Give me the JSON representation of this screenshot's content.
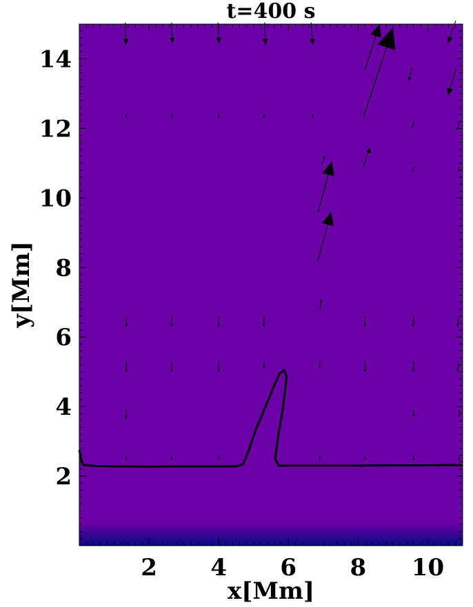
{
  "chart_data": {
    "type": "heatmap",
    "title": "t=400 s",
    "xlabel": "x[Mm]",
    "ylabel": "y[Mm]",
    "xlim": [
      0,
      11
    ],
    "ylim": [
      0,
      15
    ],
    "xticks": [
      2,
      4,
      6,
      8,
      10
    ],
    "yticks": [
      2,
      4,
      6,
      8,
      10,
      12,
      14
    ],
    "colors": {
      "field": "#6a00a6",
      "field_bottom": "#0a0a80",
      "contour": "#000000",
      "arrows": "#000000"
    },
    "contour": [
      [
        0.0,
        2.75
      ],
      [
        0.05,
        2.5
      ],
      [
        0.12,
        2.32
      ],
      [
        0.5,
        2.29
      ],
      [
        1.0,
        2.28
      ],
      [
        1.5,
        2.28
      ],
      [
        2.0,
        2.27
      ],
      [
        2.5,
        2.28
      ],
      [
        3.0,
        2.28
      ],
      [
        3.5,
        2.28
      ],
      [
        4.0,
        2.28
      ],
      [
        4.5,
        2.28
      ],
      [
        4.7,
        2.35
      ],
      [
        4.85,
        2.7
      ],
      [
        5.05,
        3.3
      ],
      [
        5.3,
        3.9
      ],
      [
        5.55,
        4.5
      ],
      [
        5.75,
        4.95
      ],
      [
        5.88,
        5.05
      ],
      [
        5.95,
        4.85
      ],
      [
        5.85,
        4.0
      ],
      [
        5.7,
        3.1
      ],
      [
        5.62,
        2.5
      ],
      [
        5.72,
        2.3
      ],
      [
        6.2,
        2.3
      ],
      [
        7.0,
        2.3
      ],
      [
        8.0,
        2.3
      ],
      [
        9.0,
        2.31
      ],
      [
        10.0,
        2.31
      ],
      [
        10.5,
        2.32
      ],
      [
        11.0,
        2.31
      ]
    ],
    "vectors": [
      {
        "x": 1.32,
        "y": 15.05,
        "u": 0.02,
        "v": -0.65
      },
      {
        "x": 2.65,
        "y": 15.05,
        "u": 0.02,
        "v": -0.6
      },
      {
        "x": 3.98,
        "y": 15.05,
        "u": 0.03,
        "v": -0.6
      },
      {
        "x": 5.32,
        "y": 15.05,
        "u": 0.02,
        "v": -0.65
      },
      {
        "x": 6.65,
        "y": 15.05,
        "u": 0.05,
        "v": -0.65
      },
      {
        "x": 8.2,
        "y": 13.7,
        "u": 0.42,
        "v": 1.3
      },
      {
        "x": 8.15,
        "y": 12.3,
        "u": 0.85,
        "v": 2.6
      },
      {
        "x": 10.8,
        "y": 15.1,
        "u": -0.22,
        "v": -0.65
      },
      {
        "x": 9.55,
        "y": 13.75,
        "u": -0.1,
        "v": -0.38
      },
      {
        "x": 10.8,
        "y": 13.7,
        "u": -0.22,
        "v": -0.75
      },
      {
        "x": 1.35,
        "y": 12.4,
        "u": 0.0,
        "v": -0.1
      },
      {
        "x": 2.65,
        "y": 12.4,
        "u": 0.0,
        "v": -0.1
      },
      {
        "x": 4.0,
        "y": 12.4,
        "u": 0.0,
        "v": -0.1
      },
      {
        "x": 5.3,
        "y": 12.4,
        "u": 0.0,
        "v": -0.1
      },
      {
        "x": 6.7,
        "y": 12.4,
        "u": 0.0,
        "v": -0.1
      },
      {
        "x": 9.6,
        "y": 12.2,
        "u": -0.05,
        "v": -0.2
      },
      {
        "x": 10.9,
        "y": 12.2,
        "u": -0.05,
        "v": -0.25
      },
      {
        "x": 8.15,
        "y": 10.9,
        "u": 0.2,
        "v": 0.55
      },
      {
        "x": 6.85,
        "y": 9.6,
        "u": 0.4,
        "v": 1.45
      },
      {
        "x": 6.95,
        "y": 10.95,
        "u": 0.1,
        "v": 0.25
      },
      {
        "x": 6.85,
        "y": 8.2,
        "u": 0.38,
        "v": 1.4
      },
      {
        "x": 6.9,
        "y": 6.8,
        "u": 0.05,
        "v": 0.3
      },
      {
        "x": 9.6,
        "y": 10.9,
        "u": -0.03,
        "v": -0.15
      },
      {
        "x": 10.9,
        "y": 10.9,
        "u": -0.03,
        "v": -0.15
      },
      {
        "x": 1.35,
        "y": 6.6,
        "u": 0.0,
        "v": -0.3
      },
      {
        "x": 2.65,
        "y": 6.6,
        "u": 0.0,
        "v": -0.3
      },
      {
        "x": 4.0,
        "y": 6.6,
        "u": 0.0,
        "v": -0.3
      },
      {
        "x": 5.3,
        "y": 6.6,
        "u": 0.0,
        "v": -0.3
      },
      {
        "x": 8.2,
        "y": 6.6,
        "u": 0.0,
        "v": -0.3
      },
      {
        "x": 9.6,
        "y": 6.6,
        "u": -0.03,
        "v": -0.3
      },
      {
        "x": 10.9,
        "y": 6.6,
        "u": -0.05,
        "v": -0.3
      },
      {
        "x": 1.35,
        "y": 5.3,
        "u": 0.0,
        "v": -0.3
      },
      {
        "x": 2.65,
        "y": 5.3,
        "u": 0.0,
        "v": -0.3
      },
      {
        "x": 4.0,
        "y": 5.3,
        "u": 0.0,
        "v": -0.3
      },
      {
        "x": 5.3,
        "y": 5.3,
        "u": 0.0,
        "v": -0.2
      },
      {
        "x": 6.9,
        "y": 5.3,
        "u": 0.0,
        "v": -0.2
      },
      {
        "x": 8.2,
        "y": 5.3,
        "u": 0.0,
        "v": -0.3
      },
      {
        "x": 9.6,
        "y": 5.3,
        "u": -0.03,
        "v": -0.3
      },
      {
        "x": 10.9,
        "y": 5.3,
        "u": -0.05,
        "v": -0.3
      },
      {
        "x": 1.35,
        "y": 3.9,
        "u": 0.0,
        "v": -0.25
      },
      {
        "x": 9.6,
        "y": 3.9,
        "u": 0.0,
        "v": -0.2
      },
      {
        "x": 10.9,
        "y": 3.9,
        "u": 0.0,
        "v": -0.2
      },
      {
        "x": 1.35,
        "y": 2.6,
        "u": 0.0,
        "v": -0.15
      },
      {
        "x": 2.65,
        "y": 2.6,
        "u": 0.0,
        "v": -0.15
      },
      {
        "x": 4.0,
        "y": 2.6,
        "u": 0.0,
        "v": -0.15
      },
      {
        "x": 6.9,
        "y": 2.6,
        "u": 0.0,
        "v": -0.15
      },
      {
        "x": 8.2,
        "y": 2.6,
        "u": 0.0,
        "v": -0.15
      },
      {
        "x": 9.6,
        "y": 2.6,
        "u": 0.0,
        "v": -0.15
      },
      {
        "x": 10.9,
        "y": 2.6,
        "u": 0.0,
        "v": -0.15
      }
    ]
  }
}
